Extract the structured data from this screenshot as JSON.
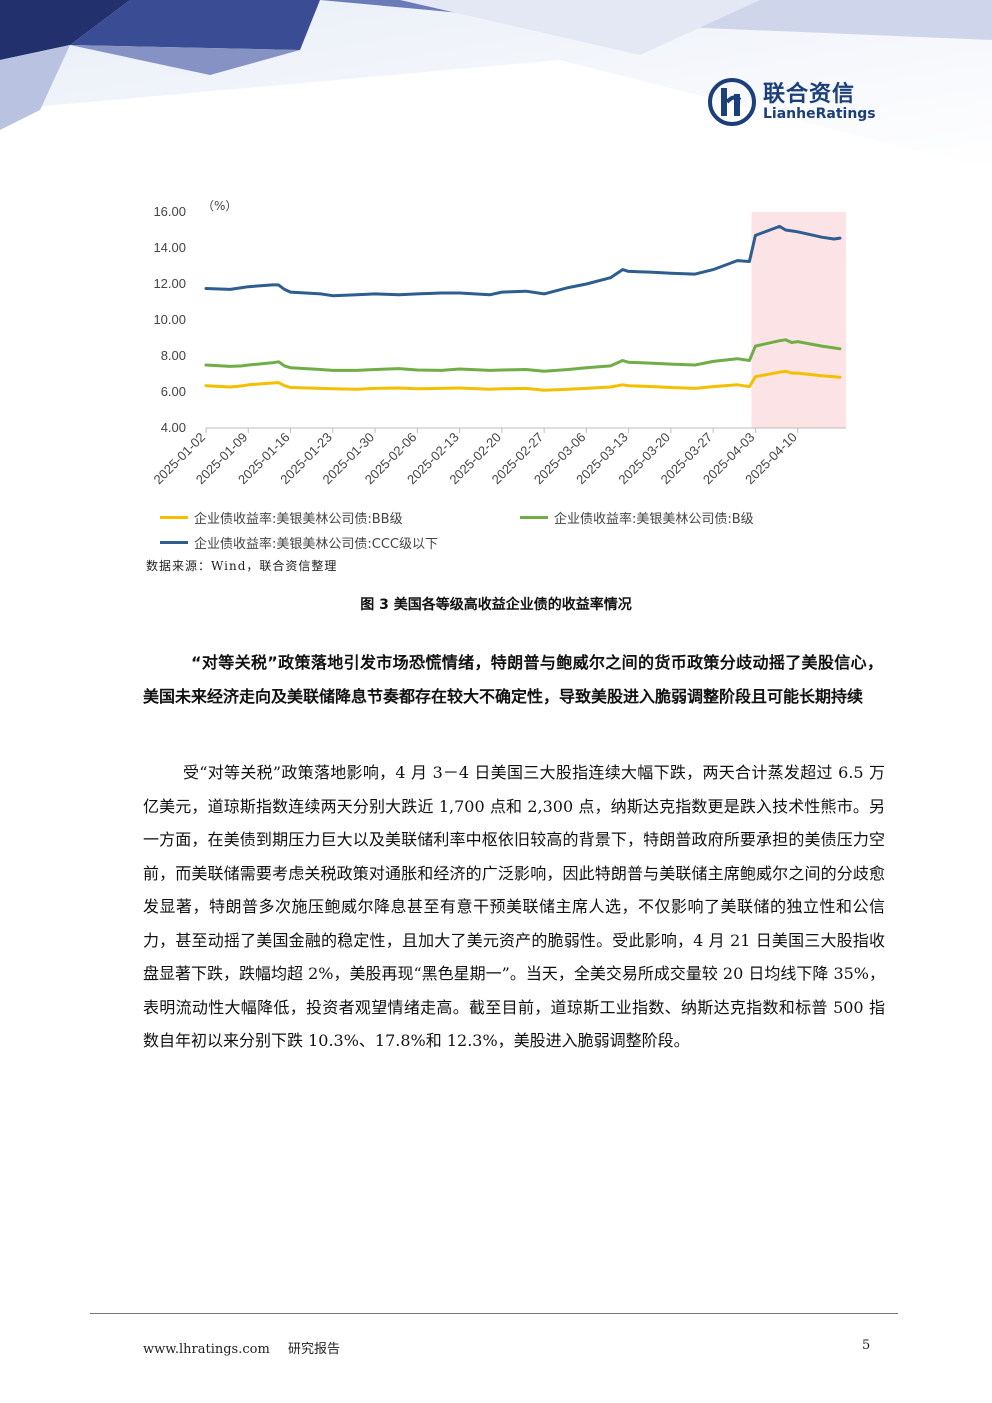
{
  "header": {
    "logo_cn": "联合资信",
    "logo_en": "LianheRatings",
    "brand_color": "#1b3f7a"
  },
  "chart_data": {
    "type": "line",
    "title": "",
    "ylabel": "（%）",
    "xlabel": "",
    "ylim": [
      4.0,
      16.0
    ],
    "y_ticks": [
      "16.00",
      "14.00",
      "12.00",
      "10.00",
      "8.00",
      "6.00",
      "4.00"
    ],
    "x_ticks": [
      "2025-01-02",
      "2025-01-09",
      "2025-01-16",
      "2025-01-23",
      "2025-01-30",
      "2025-02-06",
      "2025-02-13",
      "2025-02-20",
      "2025-02-27",
      "2025-03-06",
      "2025-03-13",
      "2025-03-20",
      "2025-03-27",
      "2025-04-03",
      "2025-04-10"
    ],
    "highlight_from": "2025-04-03",
    "highlight_color": "#fbe3e6",
    "grid": false,
    "legend_position": "bottom",
    "series": [
      {
        "name": "企业债收益率:美银美林公司债:BB级",
        "color": "#f5bf00",
        "values": [
          [
            "2025-01-02",
            6.35
          ],
          [
            "2025-01-06",
            6.28
          ],
          [
            "2025-01-08",
            6.34
          ],
          [
            "2025-01-09",
            6.4
          ],
          [
            "2025-01-13",
            6.5
          ],
          [
            "2025-01-14",
            6.52
          ],
          [
            "2025-01-15",
            6.35
          ],
          [
            "2025-01-16",
            6.25
          ],
          [
            "2025-01-21",
            6.2
          ],
          [
            "2025-01-23",
            6.18
          ],
          [
            "2025-01-27",
            6.15
          ],
          [
            "2025-01-30",
            6.2
          ],
          [
            "2025-02-03",
            6.22
          ],
          [
            "2025-02-06",
            6.18
          ],
          [
            "2025-02-10",
            6.2
          ],
          [
            "2025-02-13",
            6.22
          ],
          [
            "2025-02-18",
            6.15
          ],
          [
            "2025-02-20",
            6.18
          ],
          [
            "2025-02-24",
            6.2
          ],
          [
            "2025-02-27",
            6.1
          ],
          [
            "2025-03-03",
            6.15
          ],
          [
            "2025-03-06",
            6.2
          ],
          [
            "2025-03-10",
            6.28
          ],
          [
            "2025-03-12",
            6.4
          ],
          [
            "2025-03-13",
            6.35
          ],
          [
            "2025-03-17",
            6.3
          ],
          [
            "2025-03-20",
            6.25
          ],
          [
            "2025-03-24",
            6.2
          ],
          [
            "2025-03-27",
            6.3
          ],
          [
            "2025-03-31",
            6.4
          ],
          [
            "2025-04-02",
            6.3
          ],
          [
            "2025-04-03",
            6.85
          ],
          [
            "2025-04-07",
            7.1
          ],
          [
            "2025-04-08",
            7.15
          ],
          [
            "2025-04-09",
            7.05
          ],
          [
            "2025-04-10",
            7.05
          ],
          [
            "2025-04-14",
            6.9
          ],
          [
            "2025-04-16",
            6.85
          ],
          [
            "2025-04-17",
            6.82
          ]
        ]
      },
      {
        "name": "企业债收益率:美银美林公司债:B级",
        "color": "#70ad47",
        "values": [
          [
            "2025-01-02",
            7.5
          ],
          [
            "2025-01-06",
            7.42
          ],
          [
            "2025-01-08",
            7.45
          ],
          [
            "2025-01-09",
            7.5
          ],
          [
            "2025-01-13",
            7.62
          ],
          [
            "2025-01-14",
            7.68
          ],
          [
            "2025-01-15",
            7.45
          ],
          [
            "2025-01-16",
            7.35
          ],
          [
            "2025-01-21",
            7.25
          ],
          [
            "2025-01-23",
            7.2
          ],
          [
            "2025-01-27",
            7.2
          ],
          [
            "2025-01-30",
            7.25
          ],
          [
            "2025-02-03",
            7.3
          ],
          [
            "2025-02-06",
            7.22
          ],
          [
            "2025-02-10",
            7.2
          ],
          [
            "2025-02-13",
            7.28
          ],
          [
            "2025-02-18",
            7.2
          ],
          [
            "2025-02-20",
            7.22
          ],
          [
            "2025-02-24",
            7.25
          ],
          [
            "2025-02-27",
            7.15
          ],
          [
            "2025-03-03",
            7.25
          ],
          [
            "2025-03-06",
            7.35
          ],
          [
            "2025-03-10",
            7.45
          ],
          [
            "2025-03-12",
            7.75
          ],
          [
            "2025-03-13",
            7.65
          ],
          [
            "2025-03-17",
            7.6
          ],
          [
            "2025-03-20",
            7.55
          ],
          [
            "2025-03-24",
            7.5
          ],
          [
            "2025-03-27",
            7.7
          ],
          [
            "2025-03-31",
            7.85
          ],
          [
            "2025-04-02",
            7.75
          ],
          [
            "2025-04-03",
            8.55
          ],
          [
            "2025-04-07",
            8.85
          ],
          [
            "2025-04-08",
            8.9
          ],
          [
            "2025-04-09",
            8.75
          ],
          [
            "2025-04-10",
            8.8
          ],
          [
            "2025-04-14",
            8.55
          ],
          [
            "2025-04-16",
            8.45
          ],
          [
            "2025-04-17",
            8.4
          ]
        ]
      },
      {
        "name": "企业债收益率:美银美林公司债:CCC级以下",
        "color": "#2e5d8f",
        "values": [
          [
            "2025-01-02",
            11.75
          ],
          [
            "2025-01-06",
            11.7
          ],
          [
            "2025-01-08",
            11.8
          ],
          [
            "2025-01-09",
            11.85
          ],
          [
            "2025-01-13",
            11.95
          ],
          [
            "2025-01-14",
            11.95
          ],
          [
            "2025-01-15",
            11.7
          ],
          [
            "2025-01-16",
            11.55
          ],
          [
            "2025-01-21",
            11.45
          ],
          [
            "2025-01-23",
            11.35
          ],
          [
            "2025-01-27",
            11.4
          ],
          [
            "2025-01-30",
            11.45
          ],
          [
            "2025-02-03",
            11.4
          ],
          [
            "2025-02-06",
            11.45
          ],
          [
            "2025-02-10",
            11.5
          ],
          [
            "2025-02-13",
            11.5
          ],
          [
            "2025-02-18",
            11.4
          ],
          [
            "2025-02-20",
            11.55
          ],
          [
            "2025-02-24",
            11.6
          ],
          [
            "2025-02-27",
            11.45
          ],
          [
            "2025-03-03",
            11.8
          ],
          [
            "2025-03-06",
            12.0
          ],
          [
            "2025-03-10",
            12.35
          ],
          [
            "2025-03-12",
            12.8
          ],
          [
            "2025-03-13",
            12.7
          ],
          [
            "2025-03-17",
            12.65
          ],
          [
            "2025-03-20",
            12.6
          ],
          [
            "2025-03-24",
            12.55
          ],
          [
            "2025-03-27",
            12.8
          ],
          [
            "2025-03-31",
            13.3
          ],
          [
            "2025-04-02",
            13.25
          ],
          [
            "2025-04-03",
            14.7
          ],
          [
            "2025-04-07",
            15.2
          ],
          [
            "2025-04-08",
            15.0
          ],
          [
            "2025-04-09",
            14.95
          ],
          [
            "2025-04-10",
            14.9
          ],
          [
            "2025-04-14",
            14.6
          ],
          [
            "2025-04-16",
            14.5
          ],
          [
            "2025-04-17",
            14.55
          ]
        ]
      }
    ]
  },
  "source_note": "数据来源：Wind，联合资信整理",
  "figure_caption": "图 3   美国各等级高收益企业债的收益率情况",
  "lead_paragraph": "“对等关税”政策落地引发市场恐慌情绪，特朗普与鲍威尔之间的货币政策分歧动摇了美股信心，美国未来经济走向及美联储降息节奏都存在较大不确定性，导致美股进入脆弱调整阶段且可能长期持续",
  "body_paragraph": "受“对等关税”政策落地影响，4 月 3－4 日美国三大股指连续大幅下跌，两天合计蒸发超过 6.5 万亿美元，道琼斯指数连续两天分别大跌近 1,700 点和 2,300 点，纳斯达克指数更是跌入技术性熊市。另一方面，在美债到期压力巨大以及美联储利率中枢依旧较高的背景下，特朗普政府所要承担的美债压力空前，而美联储需要考虑关税政策对通胀和经济的广泛影响，因此特朗普与美联储主席鲍威尔之间的分歧愈发显著，特朗普多次施压鲍威尔降息甚至有意干预美联储主席人选，不仅影响了美联储的独立性和公信力，甚至动摇了美国金融的稳定性，且加大了美元资产的脆弱性。受此影响，4 月 21 日美国三大股指收盘显著下跌，跌幅均超 2%，美股再现“黑色星期一”。当天，全美交易所成交量较 20 日均线下降 35%，表明流动性大幅降低，投资者观望情绪走高。截至目前，道琼斯工业指数、纳斯达克指数和标普 500 指数自年初以来分别下跌 10.3%、17.8%和 12.3%，美股进入脆弱调整阶段。",
  "footer": {
    "website": "www.lhratings.com",
    "report_type": "研究报告",
    "page_number": "5"
  }
}
